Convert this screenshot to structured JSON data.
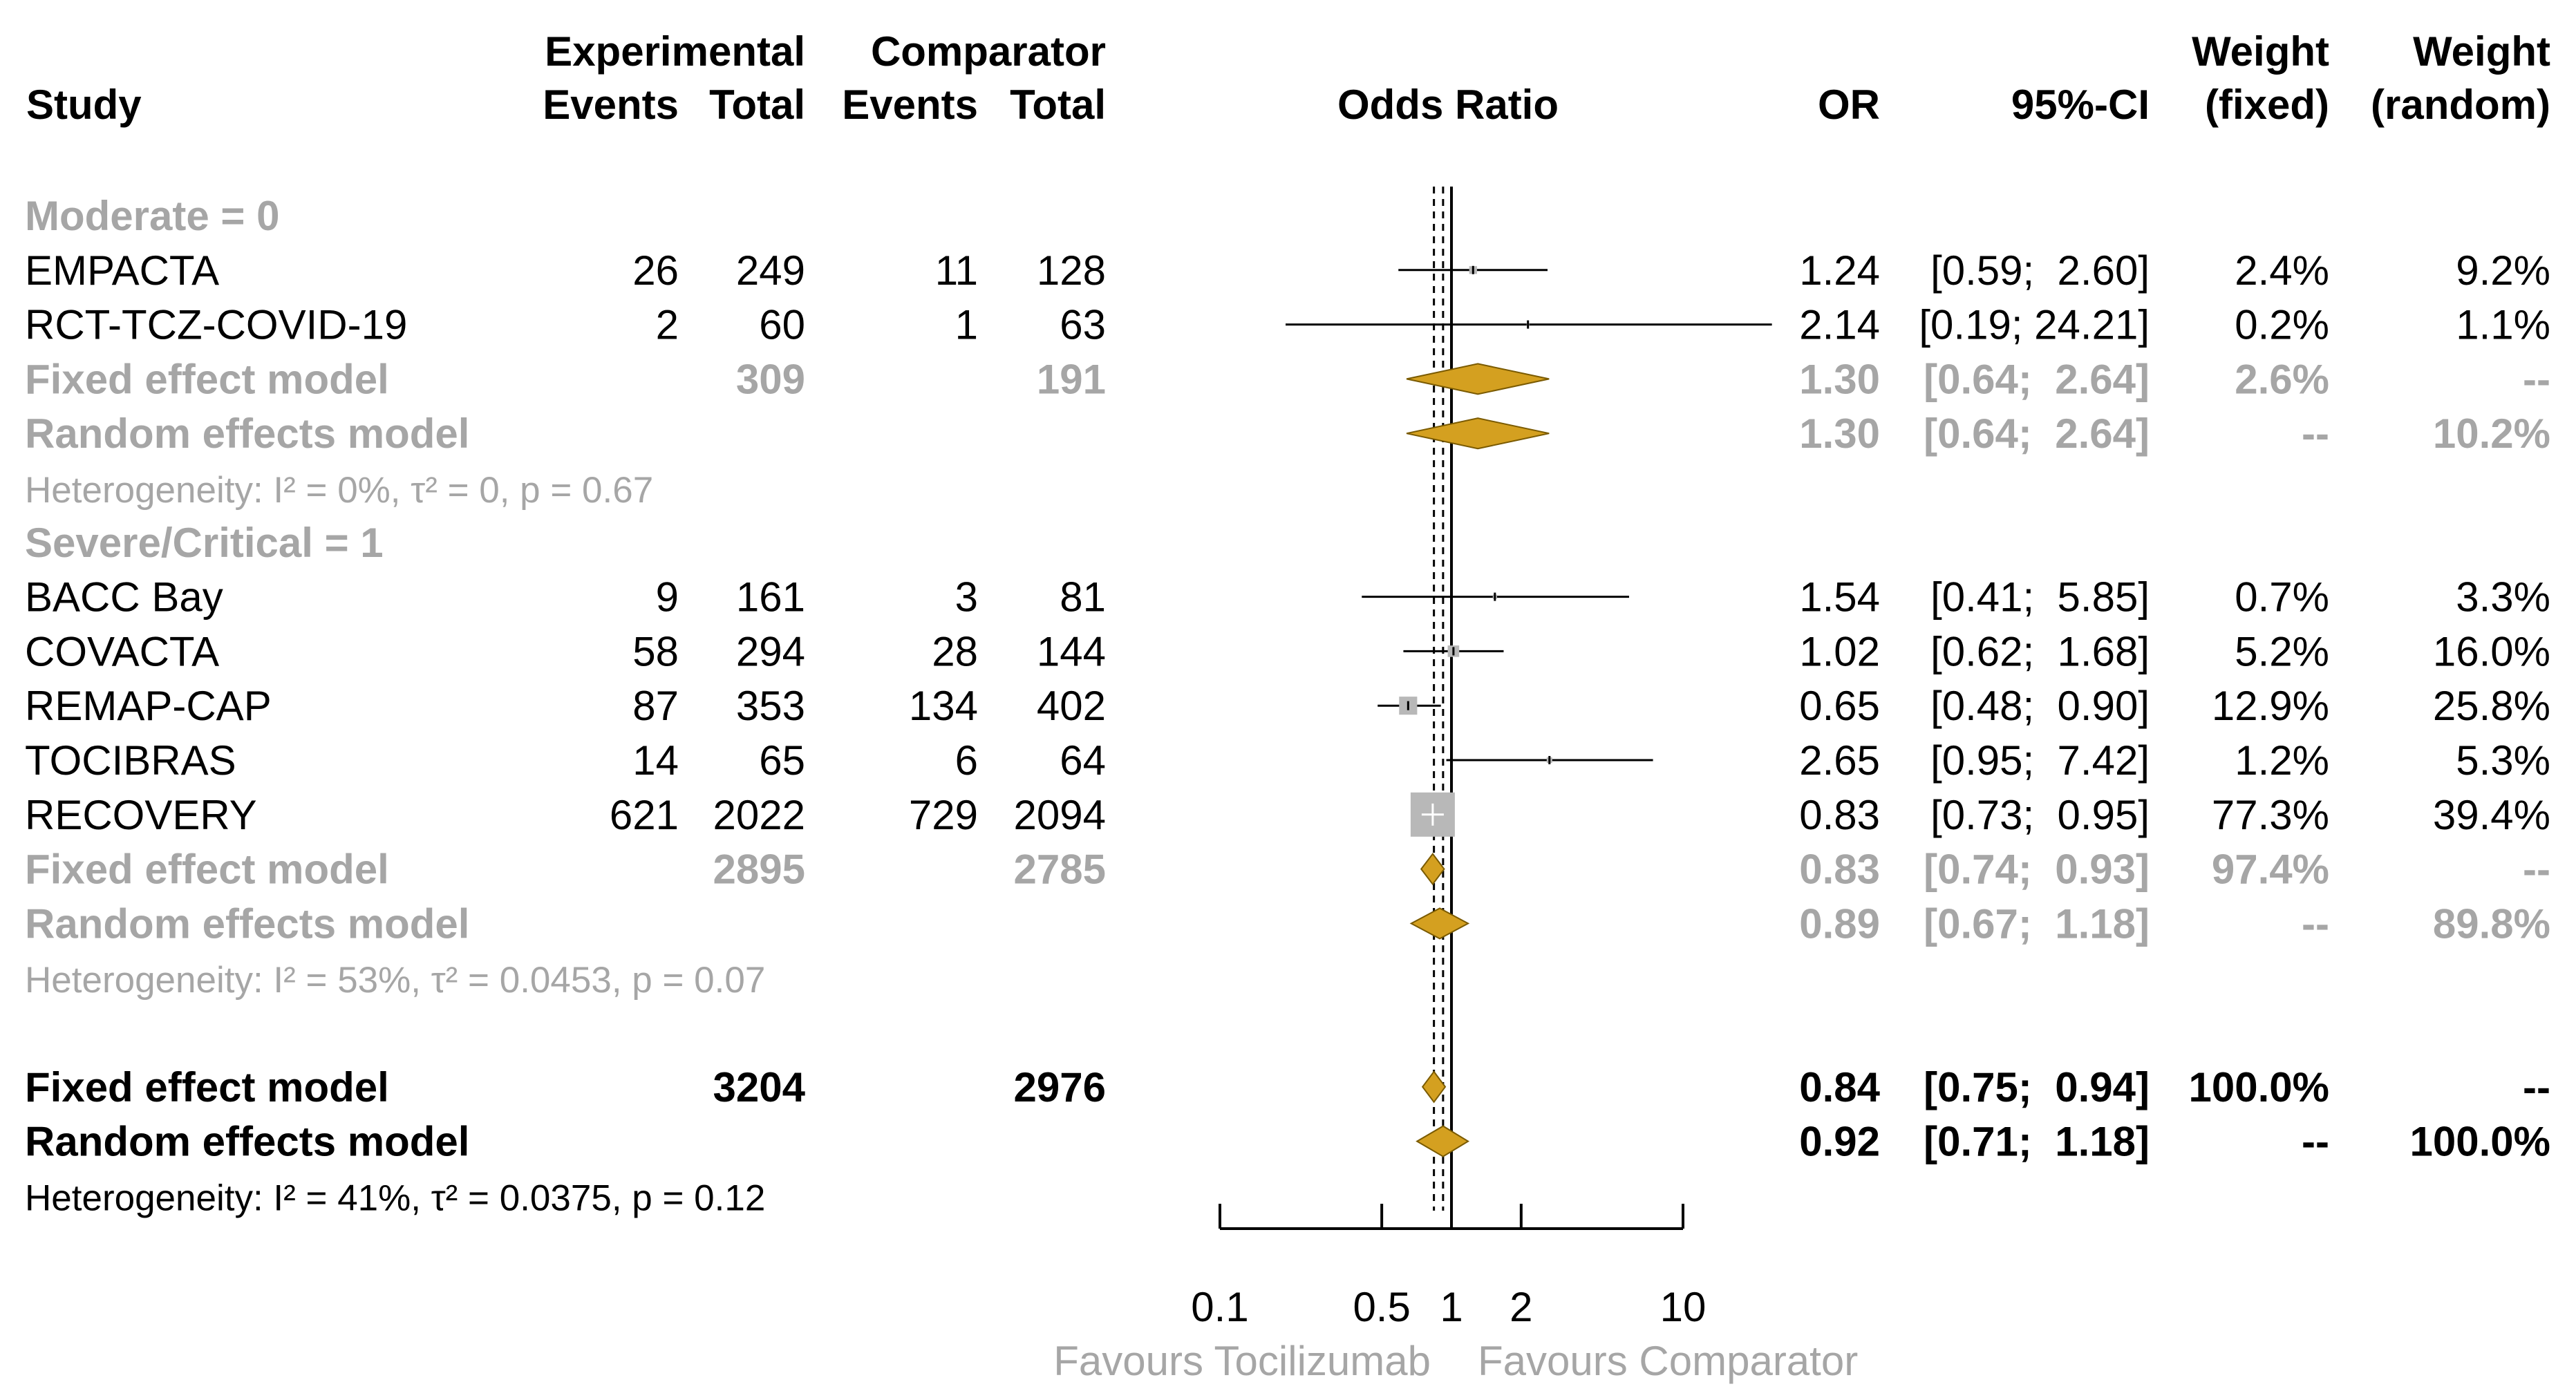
{
  "headers": {
    "study": "Study",
    "experimental": "Experimental",
    "comparator": "Comparator",
    "events_exp": "Events",
    "total_exp": "Total",
    "events_comp": "Events",
    "total_comp": "Total",
    "odds_ratio": "Odds Ratio",
    "or": "OR",
    "ci": "95%-CI",
    "weight": "Weight",
    "weight2": "Weight",
    "fixed": "(fixed)",
    "random": "(random)"
  },
  "colors": {
    "diamond": "#d4a020",
    "grey_text": "#a6a6a6",
    "grey_box": "#b8b8b8"
  },
  "chart_data": {
    "type": "forest",
    "title": "Odds Ratio",
    "x_scale": "log",
    "xlim": [
      0.1,
      10
    ],
    "x_ticks": [
      0.1,
      0.5,
      1,
      2,
      10
    ],
    "tick_labels": [
      "0.1",
      "0.5",
      "1",
      "2",
      "10"
    ],
    "xlabel_left": "Favours Tocilizumab",
    "xlabel_right": "Favours Comparator",
    "overall_fixed_or": 0.84,
    "overall_random_or": 0.92,
    "rows": [
      {
        "kind": "group",
        "label": "Moderate = 0",
        "grey": true
      },
      {
        "kind": "study",
        "label": "EMPACTA",
        "ev_e": "26",
        "n_e": "249",
        "ev_c": "11",
        "n_c": "128",
        "or_text": "1.24",
        "ci_text": "[0.59;  2.60]",
        "wf": "2.4%",
        "wr": "9.2%",
        "or": 1.24,
        "lo": 0.59,
        "hi": 2.6,
        "wfix": 2.4
      },
      {
        "kind": "study",
        "label": "RCT-TCZ-COVID-19",
        "ev_e": "2",
        "n_e": "60",
        "ev_c": "1",
        "n_c": "63",
        "or_text": "2.14",
        "ci_text": "[0.19; 24.21]",
        "wf": "0.2%",
        "wr": "1.1%",
        "or": 2.14,
        "lo": 0.19,
        "hi": 24.21,
        "wfix": 0.2
      },
      {
        "kind": "fixed",
        "label": "Fixed effect model",
        "n_e": "309",
        "n_c": "191",
        "or_text": "1.30",
        "ci_text": "[0.64;  2.64]",
        "wf": "2.6%",
        "wr": "--",
        "or": 1.3,
        "lo": 0.64,
        "hi": 2.64,
        "grey": true
      },
      {
        "kind": "random",
        "label": "Random effects model",
        "or_text": "1.30",
        "ci_text": "[0.64;  2.64]",
        "wf": "--",
        "wr": "10.2%",
        "or": 1.3,
        "lo": 0.64,
        "hi": 2.64,
        "grey": true
      },
      {
        "kind": "het",
        "label": "Heterogeneity: I² = 0%, τ² = 0, p = 0.67",
        "grey": true
      },
      {
        "kind": "group",
        "label": "Severe/Critical = 1",
        "grey": true
      },
      {
        "kind": "study",
        "label": "BACC Bay",
        "ev_e": "9",
        "n_e": "161",
        "ev_c": "3",
        "n_c": "81",
        "or_text": "1.54",
        "ci_text": "[0.41;  5.85]",
        "wf": "0.7%",
        "wr": "3.3%",
        "or": 1.54,
        "lo": 0.41,
        "hi": 5.85,
        "wfix": 0.7
      },
      {
        "kind": "study",
        "label": "COVACTA",
        "ev_e": "58",
        "n_e": "294",
        "ev_c": "28",
        "n_c": "144",
        "or_text": "1.02",
        "ci_text": "[0.62;  1.68]",
        "wf": "5.2%",
        "wr": "16.0%",
        "or": 1.02,
        "lo": 0.62,
        "hi": 1.68,
        "wfix": 5.2
      },
      {
        "kind": "study",
        "label": "REMAP-CAP",
        "ev_e": "87",
        "n_e": "353",
        "ev_c": "134",
        "n_c": "402",
        "or_text": "0.65",
        "ci_text": "[0.48;  0.90]",
        "wf": "12.9%",
        "wr": "25.8%",
        "or": 0.65,
        "lo": 0.48,
        "hi": 0.9,
        "wfix": 12.9
      },
      {
        "kind": "study",
        "label": "TOCIBRAS",
        "ev_e": "14",
        "n_e": "65",
        "ev_c": "6",
        "n_c": "64",
        "or_text": "2.65",
        "ci_text": "[0.95;  7.42]",
        "wf": "1.2%",
        "wr": "5.3%",
        "or": 2.65,
        "lo": 0.95,
        "hi": 7.42,
        "wfix": 1.2
      },
      {
        "kind": "study",
        "label": "RECOVERY",
        "ev_e": "621",
        "n_e": "2022",
        "ev_c": "729",
        "n_c": "2094",
        "or_text": "0.83",
        "ci_text": "[0.73;  0.95]",
        "wf": "77.3%",
        "wr": "39.4%",
        "or": 0.83,
        "lo": 0.73,
        "hi": 0.95,
        "wfix": 77.3
      },
      {
        "kind": "fixed",
        "label": "Fixed effect model",
        "n_e": "2895",
        "n_c": "2785",
        "or_text": "0.83",
        "ci_text": "[0.74;  0.93]",
        "wf": "97.4%",
        "wr": "--",
        "or": 0.83,
        "lo": 0.74,
        "hi": 0.93,
        "grey": true
      },
      {
        "kind": "random",
        "label": "Random effects model",
        "or_text": "0.89",
        "ci_text": "[0.67;  1.18]",
        "wf": "--",
        "wr": "89.8%",
        "or": 0.89,
        "lo": 0.67,
        "hi": 1.18,
        "grey": true
      },
      {
        "kind": "het",
        "label": "Heterogeneity: I² = 53%, τ² = 0.0453, p = 0.07",
        "grey": true
      },
      {
        "kind": "blank"
      },
      {
        "kind": "fixed",
        "label": "Fixed effect model",
        "n_e": "3204",
        "n_c": "2976",
        "or_text": "0.84",
        "ci_text": "[0.75;  0.94]",
        "wf": "100.0%",
        "wr": "--",
        "or": 0.84,
        "lo": 0.75,
        "hi": 0.94,
        "grey": false
      },
      {
        "kind": "random",
        "label": "Random effects model",
        "or_text": "0.92",
        "ci_text": "[0.71;  1.18]",
        "wf": "--",
        "wr": "100.0%",
        "or": 0.92,
        "lo": 0.71,
        "hi": 1.18,
        "grey": false
      },
      {
        "kind": "het",
        "label": "Heterogeneity: I² = 41%, τ² = 0.0375, p = 0.12",
        "grey": false
      }
    ]
  }
}
